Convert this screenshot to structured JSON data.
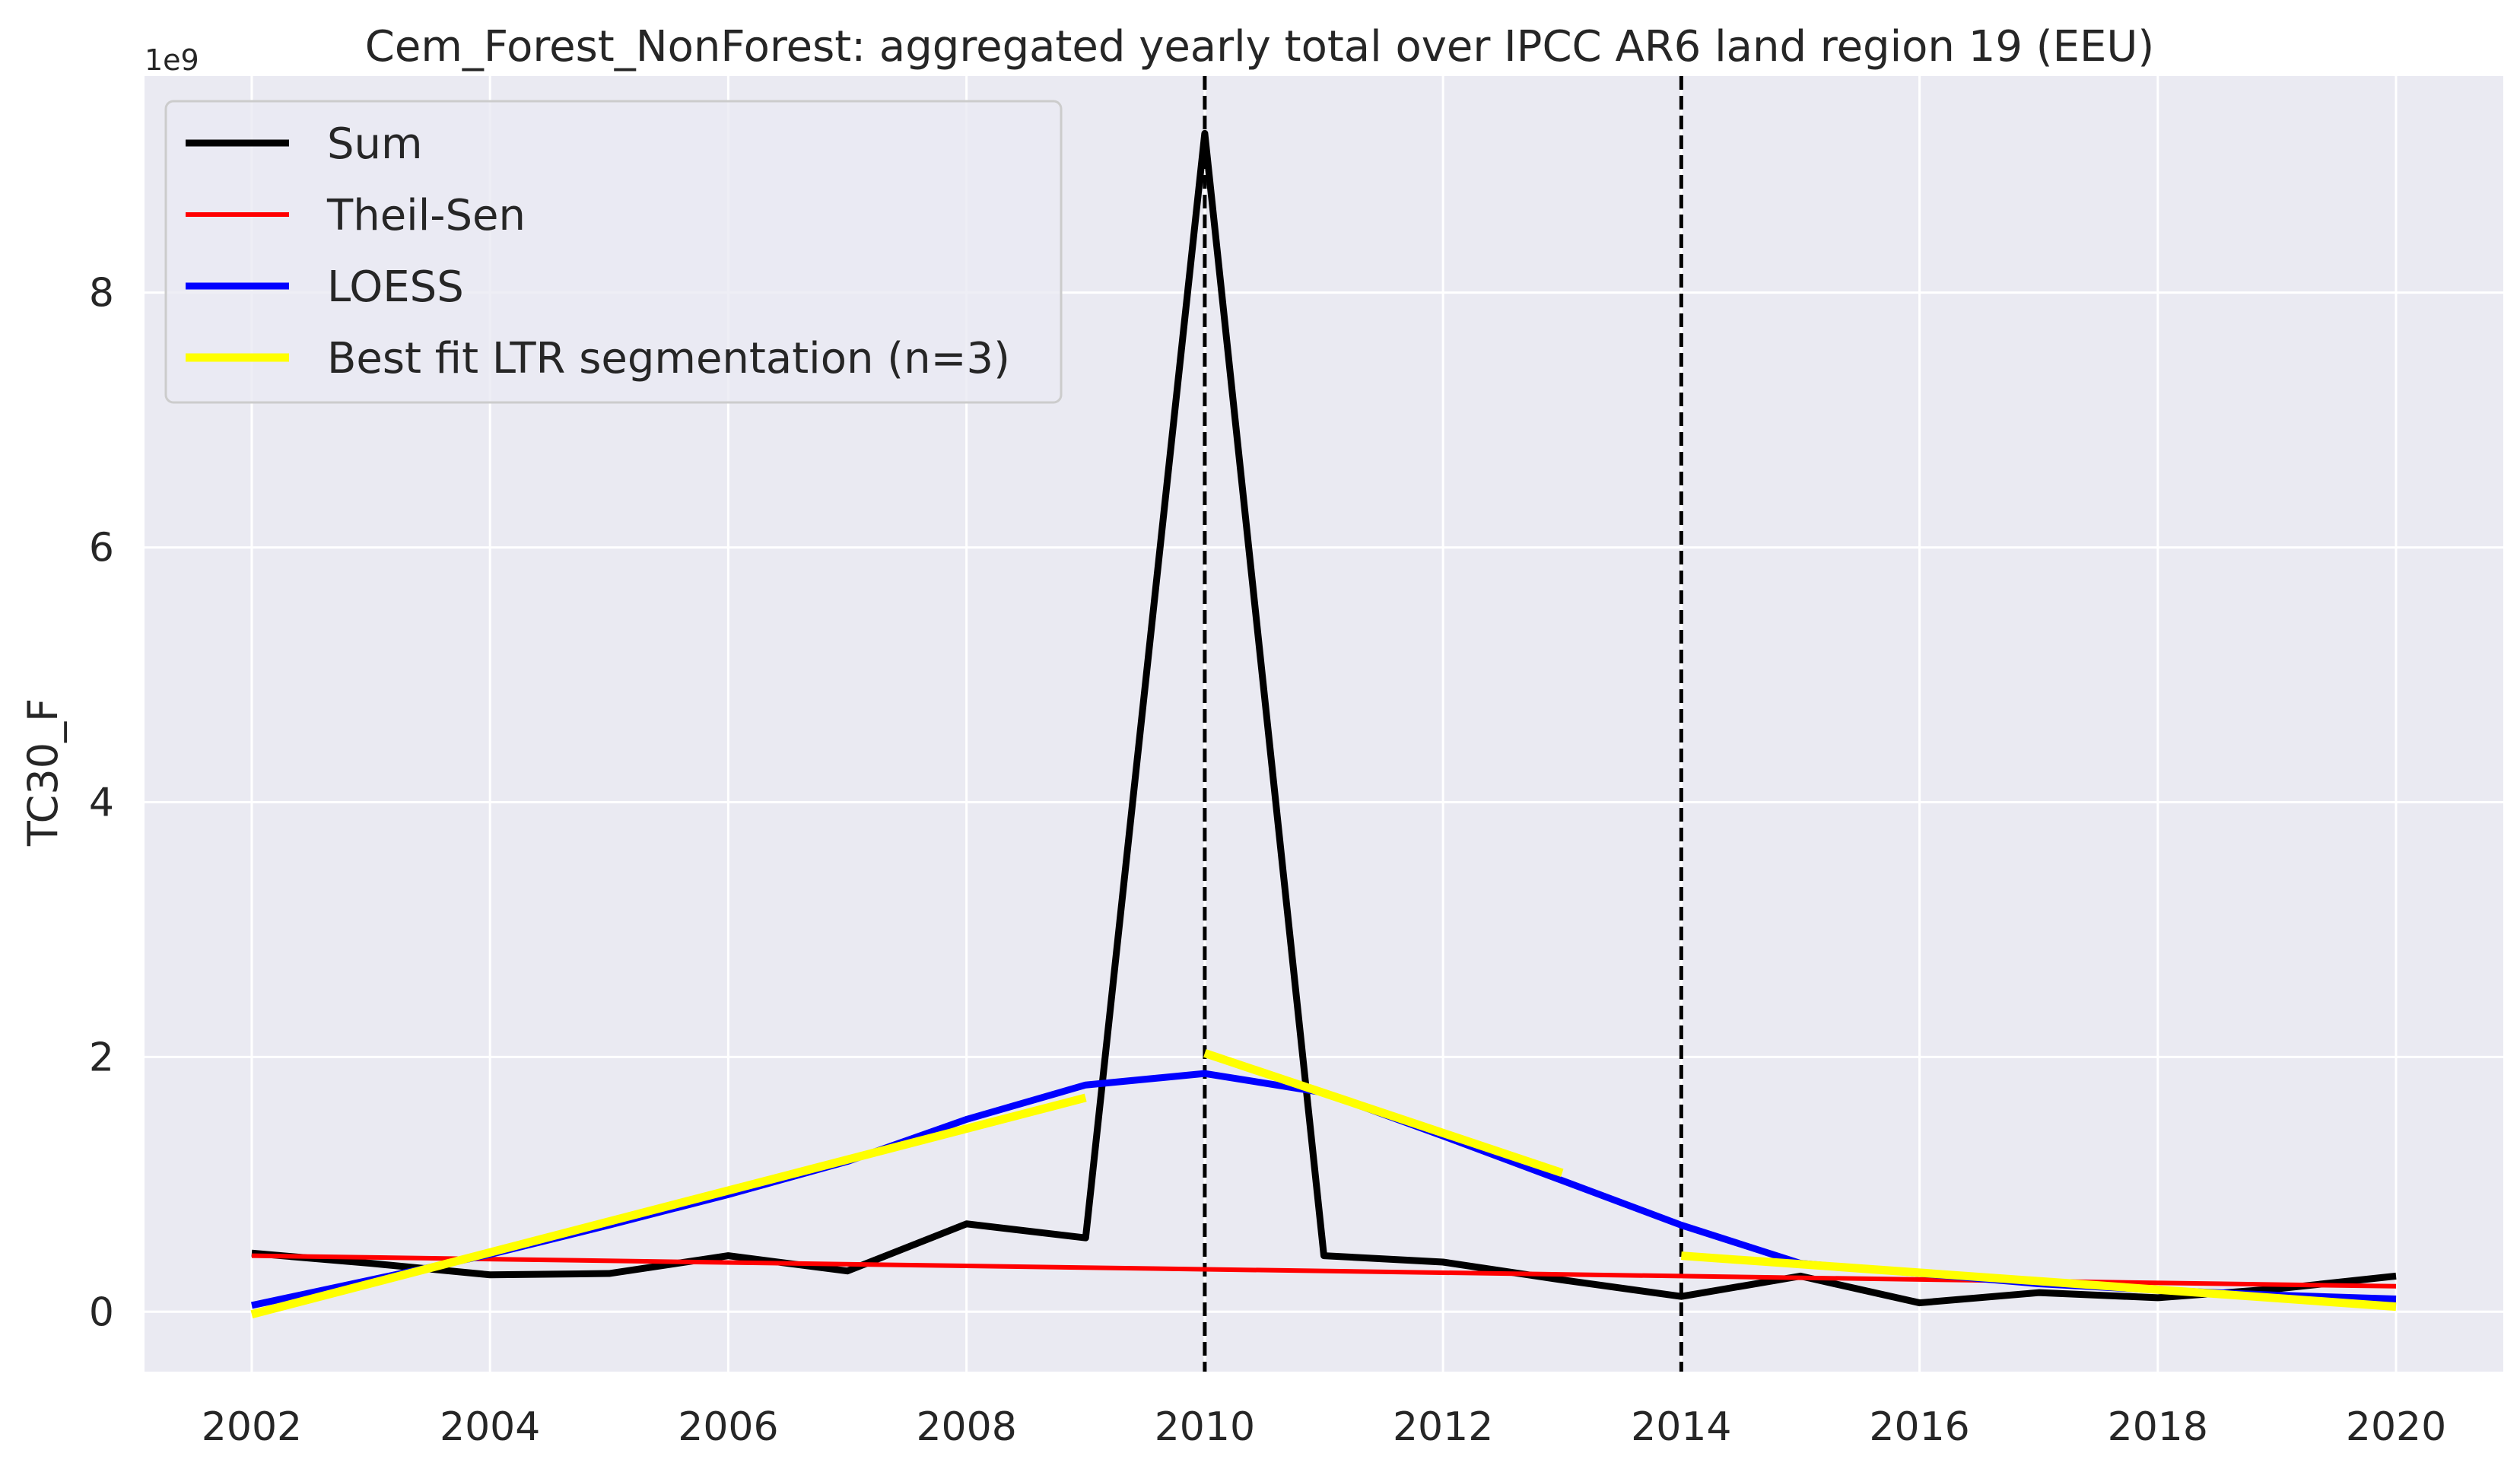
{
  "chart_data": {
    "type": "line",
    "title": "Cem_Forest_NonForest: aggregated yearly total over IPCC AR6 land region 19 (EEU)",
    "xlabel": "",
    "ylabel": "TC30_F",
    "y_offset_label": "1e9",
    "xlim": [
      2001.1,
      2020.9
    ],
    "ylim": [
      -0.47,
      9.7
    ],
    "x_ticks": [
      2002,
      2004,
      2006,
      2008,
      2010,
      2012,
      2014,
      2016,
      2018,
      2020
    ],
    "x_tick_labels": [
      "2002",
      "2004",
      "2006",
      "2008",
      "2010",
      "2012",
      "2014",
      "2016",
      "2018",
      "2020"
    ],
    "y_ticks": [
      0,
      2,
      4,
      6,
      8
    ],
    "y_tick_labels": [
      "0",
      "2",
      "4",
      "6",
      "8"
    ],
    "grid": true,
    "background": "#eaeaf2",
    "legend_position": "top-left",
    "vlines": [
      2010,
      2014
    ],
    "series": [
      {
        "name": "Sum",
        "color": "#000000",
        "x": [
          2002,
          2003,
          2004,
          2005,
          2006,
          2007,
          2008,
          2009,
          2010,
          2011,
          2012,
          2013,
          2014,
          2015,
          2016,
          2017,
          2018,
          2019,
          2020
        ],
        "values": [
          0.46,
          0.38,
          0.29,
          0.3,
          0.44,
          0.32,
          0.69,
          0.58,
          9.25,
          0.44,
          0.39,
          0.25,
          0.12,
          0.28,
          0.07,
          0.15,
          0.11,
          0.18,
          0.28
        ]
      },
      {
        "name": "Theil-Sen",
        "color": "#ff0000",
        "x": [
          2002,
          2020
        ],
        "values": [
          0.44,
          0.2
        ]
      },
      {
        "name": "LOESS",
        "color": "#0000ff",
        "x": [
          2002,
          2003,
          2004,
          2005,
          2006,
          2007,
          2008,
          2009,
          2010,
          2011,
          2012,
          2013,
          2014,
          2015,
          2016,
          2017,
          2018,
          2019,
          2020
        ],
        "values": [
          0.05,
          0.25,
          0.45,
          0.68,
          0.92,
          1.18,
          1.51,
          1.78,
          1.87,
          1.72,
          1.38,
          1.03,
          0.68,
          0.38,
          0.3,
          0.22,
          0.17,
          0.13,
          0.1
        ]
      },
      {
        "name": "Best fit LTR segmentation (n=3)",
        "color": "#ffff00",
        "segments": [
          {
            "x": [
              2002,
              2009
            ],
            "values": [
              -0.02,
              1.68
            ]
          },
          {
            "x": [
              2010,
              2013
            ],
            "values": [
              2.03,
              1.09
            ]
          },
          {
            "x": [
              2014,
              2020
            ],
            "values": [
              0.44,
              0.04
            ]
          }
        ]
      }
    ]
  }
}
